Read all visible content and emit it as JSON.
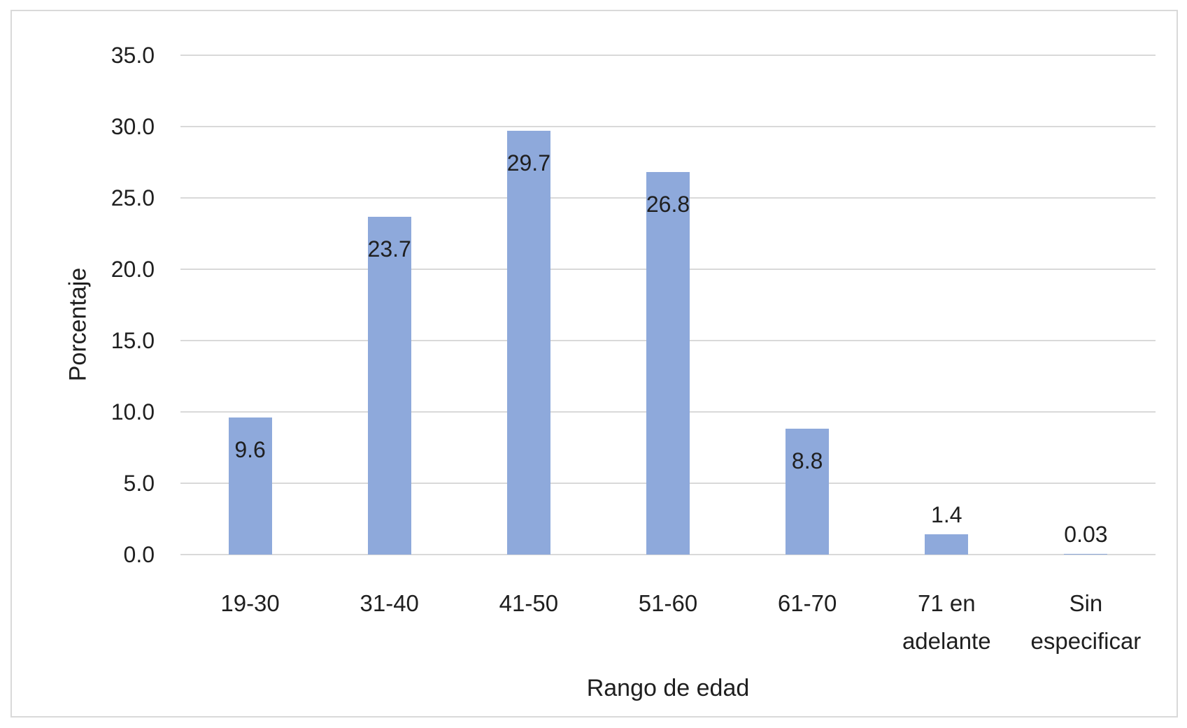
{
  "chart_data": {
    "type": "bar",
    "title": "",
    "categories": [
      "19-30",
      "31-40",
      "41-50",
      "51-60",
      "61-70",
      "71 en\nadelante",
      "Sin\nespecificar"
    ],
    "values": [
      9.6,
      23.7,
      29.7,
      26.8,
      8.8,
      1.4,
      0.03
    ],
    "value_labels": [
      "9.6",
      "23.7",
      "29.7",
      "26.8",
      "8.8",
      "1.4",
      "0.03"
    ],
    "label_placement": [
      "inside",
      "inside",
      "inside",
      "inside",
      "inside",
      "outside",
      "outside"
    ],
    "xlabel": "Rango de edad",
    "ylabel": "Porcentaje",
    "ylim": [
      0,
      35
    ],
    "ytick_step": 5,
    "ytick_labels": [
      "0.0",
      "5.0",
      "10.0",
      "15.0",
      "20.0",
      "25.0",
      "30.0",
      "35.0"
    ],
    "grid": true,
    "legend": false,
    "colors": {
      "bar_fill": "#8EA9DB",
      "gridline": "#D9D9D9",
      "chart_border": "#D9D9D9",
      "text": "#1F1F1F",
      "background": "#FFFFFF"
    }
  }
}
